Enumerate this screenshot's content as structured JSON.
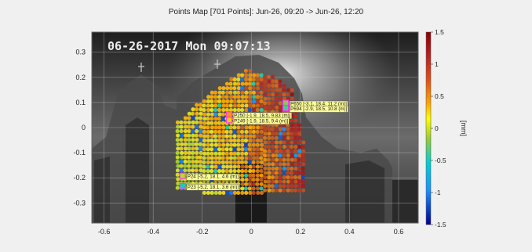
{
  "window": {
    "title": "Points Map [701 Points]: Jun-26, 09:20 -> Jun-26, 12:20"
  },
  "overlay": {
    "timestamp": "06-26-2017 Mon 09:07:13"
  },
  "chart_data": {
    "type": "scatter",
    "title": "Points Map [701 Points]: Jun-26, 09:20 -> Jun-26, 12:20",
    "xlabel": "",
    "ylabel": "",
    "xlim": [
      -0.65,
      0.68
    ],
    "ylim": [
      -0.38,
      0.38
    ],
    "x_ticks": [
      "-0.6",
      "-0.4",
      "-0.2",
      "0",
      "0.2",
      "0.4",
      "0.6"
    ],
    "y_ticks": [
      "0.3",
      "0.2",
      "0.1",
      "0",
      "-0.1",
      "-0.2",
      "-0.3"
    ],
    "grid": true,
    "colorbar": {
      "label": "[mm]",
      "min": -1.5,
      "max": 1.5,
      "ticks": [
        "1.5",
        "1",
        "0.5",
        "0",
        "-0.5",
        "-1",
        "-1.5"
      ],
      "colors": [
        "#00008b",
        "#1e90ff",
        "#00ced1",
        "#9acd32",
        "#ffff00",
        "#ffa500",
        "#d2691e",
        "#b22222",
        "#8b0000"
      ]
    },
    "total_points": 701,
    "labels": [
      {
        "id": "P650",
        "text": "P650 [-3.1, 18.4, 11.2 (m)]",
        "x": 0.14,
        "y": 0.098,
        "value": 0.1
      },
      {
        "id": "P694",
        "text": "P694 [-2.9, 18.5, 10.8 (m)]",
        "x": 0.14,
        "y": 0.078,
        "value": -0.2
      },
      {
        "id": "P250",
        "text": "P250 [-1.9, 18.5, 9.83 (m)]",
        "x": -0.09,
        "y": 0.052,
        "value": 0.8
      },
      {
        "id": "P249",
        "text": "P249 [-1.9, 18.5, 9.4 (m)]",
        "x": -0.09,
        "y": 0.03,
        "value": 0.6
      },
      {
        "id": "P24",
        "text": "P24 [-5.2, 18.1, 4.6 (m)]",
        "x": -0.28,
        "y": -0.192,
        "value": 0.3
      },
      {
        "id": "P23",
        "text": "P23 [-5.2, 18.1, 3.6 (m)]",
        "x": -0.28,
        "y": -0.233,
        "value": -0.4
      }
    ]
  }
}
